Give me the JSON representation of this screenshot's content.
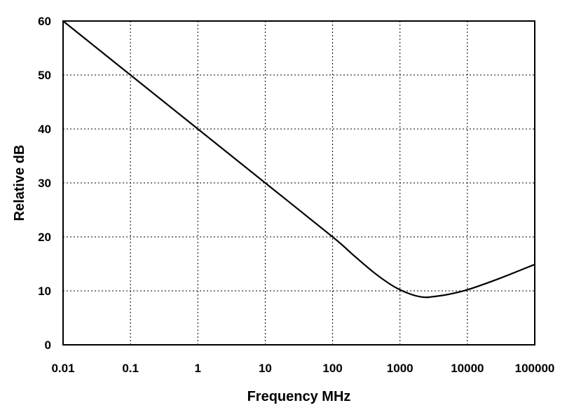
{
  "chart_data": {
    "type": "line",
    "title": "",
    "xlabel": "Frequency MHz",
    "ylabel": "Relative dB",
    "xscale": "log",
    "xlim": [
      0.01,
      100000
    ],
    "ylim": [
      0,
      60
    ],
    "grid": true,
    "legend": "none",
    "x_tick_labels": [
      "0.01",
      "0.1",
      "1",
      "10",
      "100",
      "1000",
      "10000",
      "100000"
    ],
    "y_tick_labels": [
      "0",
      "10",
      "20",
      "30",
      "40",
      "50",
      "60"
    ],
    "series": [
      {
        "color": "#000000",
        "x": [
          0.01,
          0.1,
          1,
          10,
          100,
          200,
          400,
          700,
          1000,
          1500,
          2000,
          2500,
          3000,
          5000,
          10000,
          30000,
          100000
        ],
        "y": [
          60,
          50,
          40,
          30,
          20,
          16.7,
          13.5,
          11.3,
          10.2,
          9.3,
          8.9,
          8.8,
          8.9,
          9.3,
          10.2,
          12.3,
          14.9
        ]
      }
    ]
  }
}
